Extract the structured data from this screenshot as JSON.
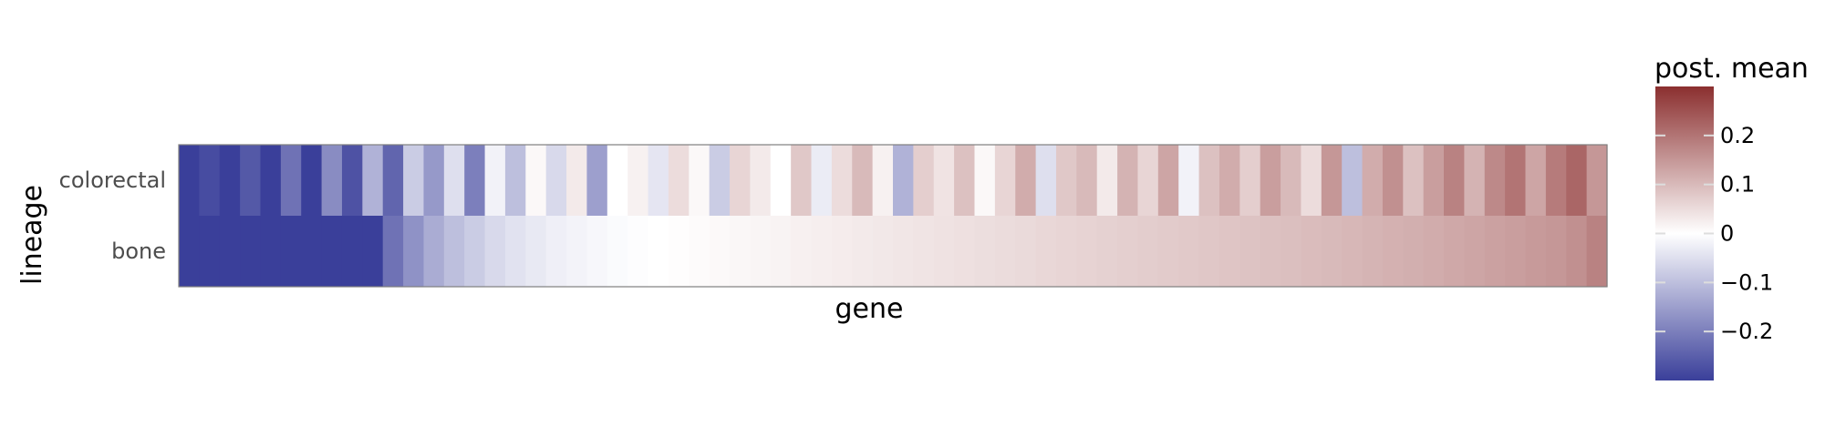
{
  "chart_data": {
    "type": "heatmap",
    "xlabel": "gene",
    "ylabel": "lineage",
    "rows": [
      "colorectal",
      "bone"
    ],
    "color_scale": {
      "title": "post. mean",
      "low_color": "#3a3f9a",
      "mid_color": "#ffffff",
      "high_color": "#8b2f2f",
      "limits": [
        -0.3,
        0.3
      ],
      "ticks": [
        -0.2,
        -0.1,
        0,
        0.1,
        0.2
      ],
      "tick_labels": [
        "−0.2",
        "−0.1",
        "0",
        "0.1",
        "0.2"
      ]
    },
    "series": [
      {
        "name": "bone",
        "description_of_values": "genes sorted by bone posterior mean, smooth gradient",
        "values": [
          -0.3,
          -0.3,
          -0.3,
          -0.3,
          -0.3,
          -0.3,
          -0.3,
          -0.3,
          -0.3,
          -0.3,
          -0.22,
          -0.17,
          -0.13,
          -0.1,
          -0.08,
          -0.06,
          -0.045,
          -0.035,
          -0.025,
          -0.018,
          -0.012,
          -0.007,
          -0.003,
          0.0,
          0.003,
          0.006,
          0.009,
          0.012,
          0.015,
          0.018,
          0.021,
          0.024,
          0.027,
          0.03,
          0.033,
          0.036,
          0.039,
          0.042,
          0.045,
          0.048,
          0.051,
          0.054,
          0.057,
          0.06,
          0.063,
          0.066,
          0.069,
          0.072,
          0.075,
          0.078,
          0.081,
          0.084,
          0.087,
          0.09,
          0.093,
          0.096,
          0.1,
          0.104,
          0.108,
          0.112,
          0.116,
          0.12,
          0.125,
          0.13,
          0.135,
          0.14,
          0.145,
          0.15,
          0.16,
          0.18
        ]
      },
      {
        "name": "colorectal",
        "description_of_values": "same gene order, noisy values",
        "values": [
          -0.3,
          -0.28,
          -0.3,
          -0.26,
          -0.3,
          -0.22,
          -0.3,
          -0.18,
          -0.27,
          -0.12,
          -0.24,
          -0.08,
          -0.16,
          -0.05,
          -0.2,
          -0.02,
          -0.1,
          0.01,
          -0.06,
          0.03,
          -0.15,
          0.0,
          0.02,
          -0.04,
          0.05,
          0.01,
          -0.08,
          0.06,
          0.03,
          0.0,
          0.08,
          -0.03,
          0.05,
          0.1,
          0.02,
          -0.12,
          0.07,
          0.04,
          0.09,
          0.01,
          0.06,
          0.12,
          -0.05,
          0.08,
          0.1,
          0.03,
          0.11,
          0.06,
          0.13,
          -0.02,
          0.09,
          0.12,
          0.07,
          0.14,
          0.1,
          0.05,
          0.15,
          -0.1,
          0.12,
          0.16,
          0.09,
          0.14,
          0.18,
          0.11,
          0.17,
          0.2,
          0.13,
          0.19,
          0.22,
          0.15
        ]
      }
    ],
    "grid": false,
    "legend_position": "right"
  }
}
